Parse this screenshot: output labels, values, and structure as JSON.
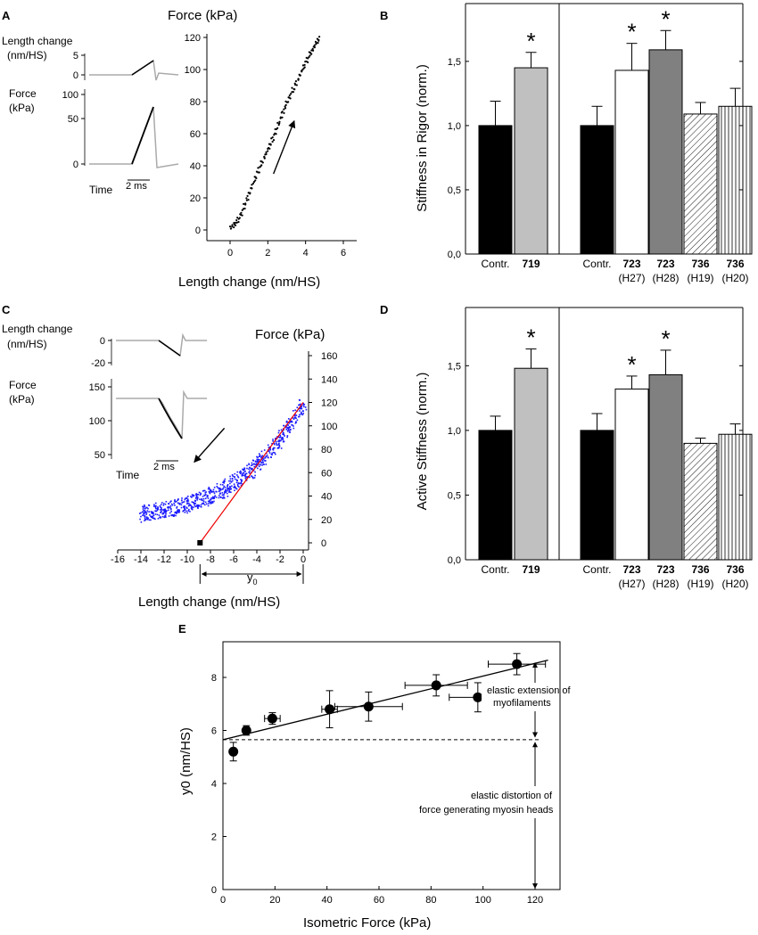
{
  "chart_data": [
    {
      "panel": "A",
      "type": "scatter",
      "panel_label": "A",
      "title": "Force (kPa)",
      "xlabel": "Length  change (nm/HS)",
      "xlim": [
        -1,
        6
      ],
      "ylim": [
        -5,
        120
      ],
      "xticks": [
        "0",
        "2",
        "4",
        "6"
      ],
      "yticks": [
        "0",
        "20",
        "40",
        "60",
        "80",
        "100",
        "120"
      ],
      "x": [
        0,
        0.2,
        0.4,
        0.6,
        0.8,
        1.0,
        1.2,
        1.4,
        1.6,
        1.8,
        2.0,
        2.2,
        2.4,
        2.6,
        2.8,
        3.0,
        3.2,
        3.4,
        3.6,
        3.8,
        4.0,
        4.2,
        4.4,
        4.6,
        4.75
      ],
      "y": [
        1,
        3,
        6,
        10,
        16,
        22,
        28,
        34,
        40,
        45,
        50,
        55,
        61,
        67,
        73,
        79,
        84,
        89,
        94,
        99,
        104,
        109,
        113,
        117,
        120
      ],
      "inset": {
        "length_label": "Length change\n(nm/HS)",
        "length_label_lines": [
          "Length change",
          "(nm/HS)"
        ],
        "length_ticks": [
          "5",
          "0"
        ],
        "force_label_lines": [
          "Force",
          "(kPa)"
        ],
        "force_ticks": [
          "100",
          "50",
          "0"
        ],
        "time_label": "Time",
        "scale_label": "2 ms"
      }
    },
    {
      "panel": "B",
      "type": "bar",
      "panel_label": "B",
      "ylabel": "Stiffness in Rigor (norm.)",
      "ylim": [
        0,
        1.95
      ],
      "yticks": [
        "0,0",
        "0,5",
        "1,0",
        "1,5"
      ],
      "groups": [
        {
          "categories": [
            "Contr.",
            "719"
          ],
          "sublabels": [
            "",
            ""
          ],
          "values": [
            1.0,
            1.45
          ],
          "errors": [
            0.19,
            0.12
          ],
          "significant": [
            false,
            true
          ]
        },
        {
          "categories": [
            "Contr.",
            "723",
            "723",
            "736",
            "736"
          ],
          "sublabels": [
            "",
            "(H27)",
            "(H28)",
            "(H19)",
            "(H20)"
          ],
          "values": [
            1.0,
            1.43,
            1.59,
            1.09,
            1.15
          ],
          "errors": [
            0.15,
            0.21,
            0.15,
            0.09,
            0.14
          ],
          "significant": [
            false,
            true,
            true,
            false,
            false
          ]
        }
      ],
      "significance_mark": "*"
    },
    {
      "panel": "C",
      "type": "scatter",
      "panel_label": "C",
      "title": "Force (kPa)",
      "xlabel": "Length change (nm/HS)",
      "xlim": [
        -16,
        0
      ],
      "ylim": [
        0,
        170
      ],
      "xticks": [
        "-16",
        "-14",
        "-12",
        "-10",
        "-8",
        "-6",
        "-4",
        "-2",
        "0"
      ],
      "yticks": [
        "0",
        "20",
        "40",
        "60",
        "80",
        "100",
        "120",
        "140",
        "160"
      ],
      "x": [
        -14,
        -13,
        -12,
        -11,
        -10,
        -9,
        -8,
        -7,
        -6,
        -5,
        -4,
        -3,
        -2,
        -1,
        0
      ],
      "y": [
        25,
        27,
        29,
        31,
        34,
        37,
        41,
        46,
        52,
        59,
        67,
        78,
        90,
        105,
        120
      ],
      "fit_line": {
        "x": [
          -8.9,
          0
        ],
        "y": [
          0,
          120
        ]
      },
      "y0_label": "y0",
      "inset": {
        "length_label_lines": [
          "Length change",
          "(nm/HS)"
        ],
        "length_ticks": [
          "0",
          "-20"
        ],
        "force_label_lines": [
          "Force",
          "(kPa)"
        ],
        "force_ticks": [
          "150",
          "100",
          "50"
        ],
        "time_label": "Time",
        "scale_label": "2 ms"
      }
    },
    {
      "panel": "D",
      "type": "bar",
      "panel_label": "D",
      "ylabel": "Active Stiffness (norm.)",
      "ylim": [
        0,
        1.95
      ],
      "yticks": [
        "0,0",
        "0,5",
        "1,0",
        "1,5"
      ],
      "groups": [
        {
          "categories": [
            "Contr.",
            "719"
          ],
          "sublabels": [
            "",
            ""
          ],
          "values": [
            1.0,
            1.48
          ],
          "errors": [
            0.11,
            0.15
          ],
          "significant": [
            false,
            true
          ]
        },
        {
          "categories": [
            "Contr.",
            "723",
            "723",
            "736",
            "736"
          ],
          "sublabels": [
            "",
            "(H27)",
            "(H28)",
            "(H19)",
            "(H20)"
          ],
          "values": [
            1.0,
            1.32,
            1.43,
            0.9,
            0.97
          ],
          "errors": [
            0.13,
            0.1,
            0.19,
            0.04,
            0.08
          ],
          "significant": [
            false,
            true,
            true,
            false,
            false
          ]
        }
      ],
      "significance_mark": "*"
    },
    {
      "panel": "E",
      "type": "scatter",
      "panel_label": "E",
      "xlabel": "Isometric Force (kPa)",
      "ylabel": "y0 (nm/HS)",
      "xlim": [
        0,
        127
      ],
      "ylim": [
        0,
        9.2
      ],
      "xticks": [
        "0",
        "20",
        "40",
        "60",
        "80",
        "100",
        "120"
      ],
      "yticks": [
        "0",
        "2",
        "4",
        "6",
        "8"
      ],
      "points": [
        {
          "x": 4,
          "y": 5.2,
          "xerr": 0,
          "yerr": 0.35
        },
        {
          "x": 9,
          "y": 6.0,
          "xerr": 0,
          "yerr": 0.18
        },
        {
          "x": 19,
          "y": 6.45,
          "xerr": 3,
          "yerr": 0.22
        },
        {
          "x": 41,
          "y": 6.8,
          "xerr": 3,
          "yerr": 0.7
        },
        {
          "x": 56,
          "y": 6.9,
          "xerr": 13,
          "yerr": 0.55
        },
        {
          "x": 82,
          "y": 7.7,
          "xerr": 12,
          "yerr": 0.4
        },
        {
          "x": 98,
          "y": 7.25,
          "xerr": 11,
          "yerr": 0.55
        },
        {
          "x": 113,
          "y": 8.5,
          "xerr": 11,
          "yerr": 0.4
        }
      ],
      "fit_line": {
        "x": [
          0,
          125
        ],
        "y": [
          5.65,
          8.65
        ]
      },
      "intercept_line_y": 5.65,
      "annotations": {
        "upper_lines": [
          "elastic extension of",
          "myofilaments"
        ],
        "lower_lines": [
          "elastic distortion of",
          "force generating myosin heads"
        ]
      }
    }
  ]
}
